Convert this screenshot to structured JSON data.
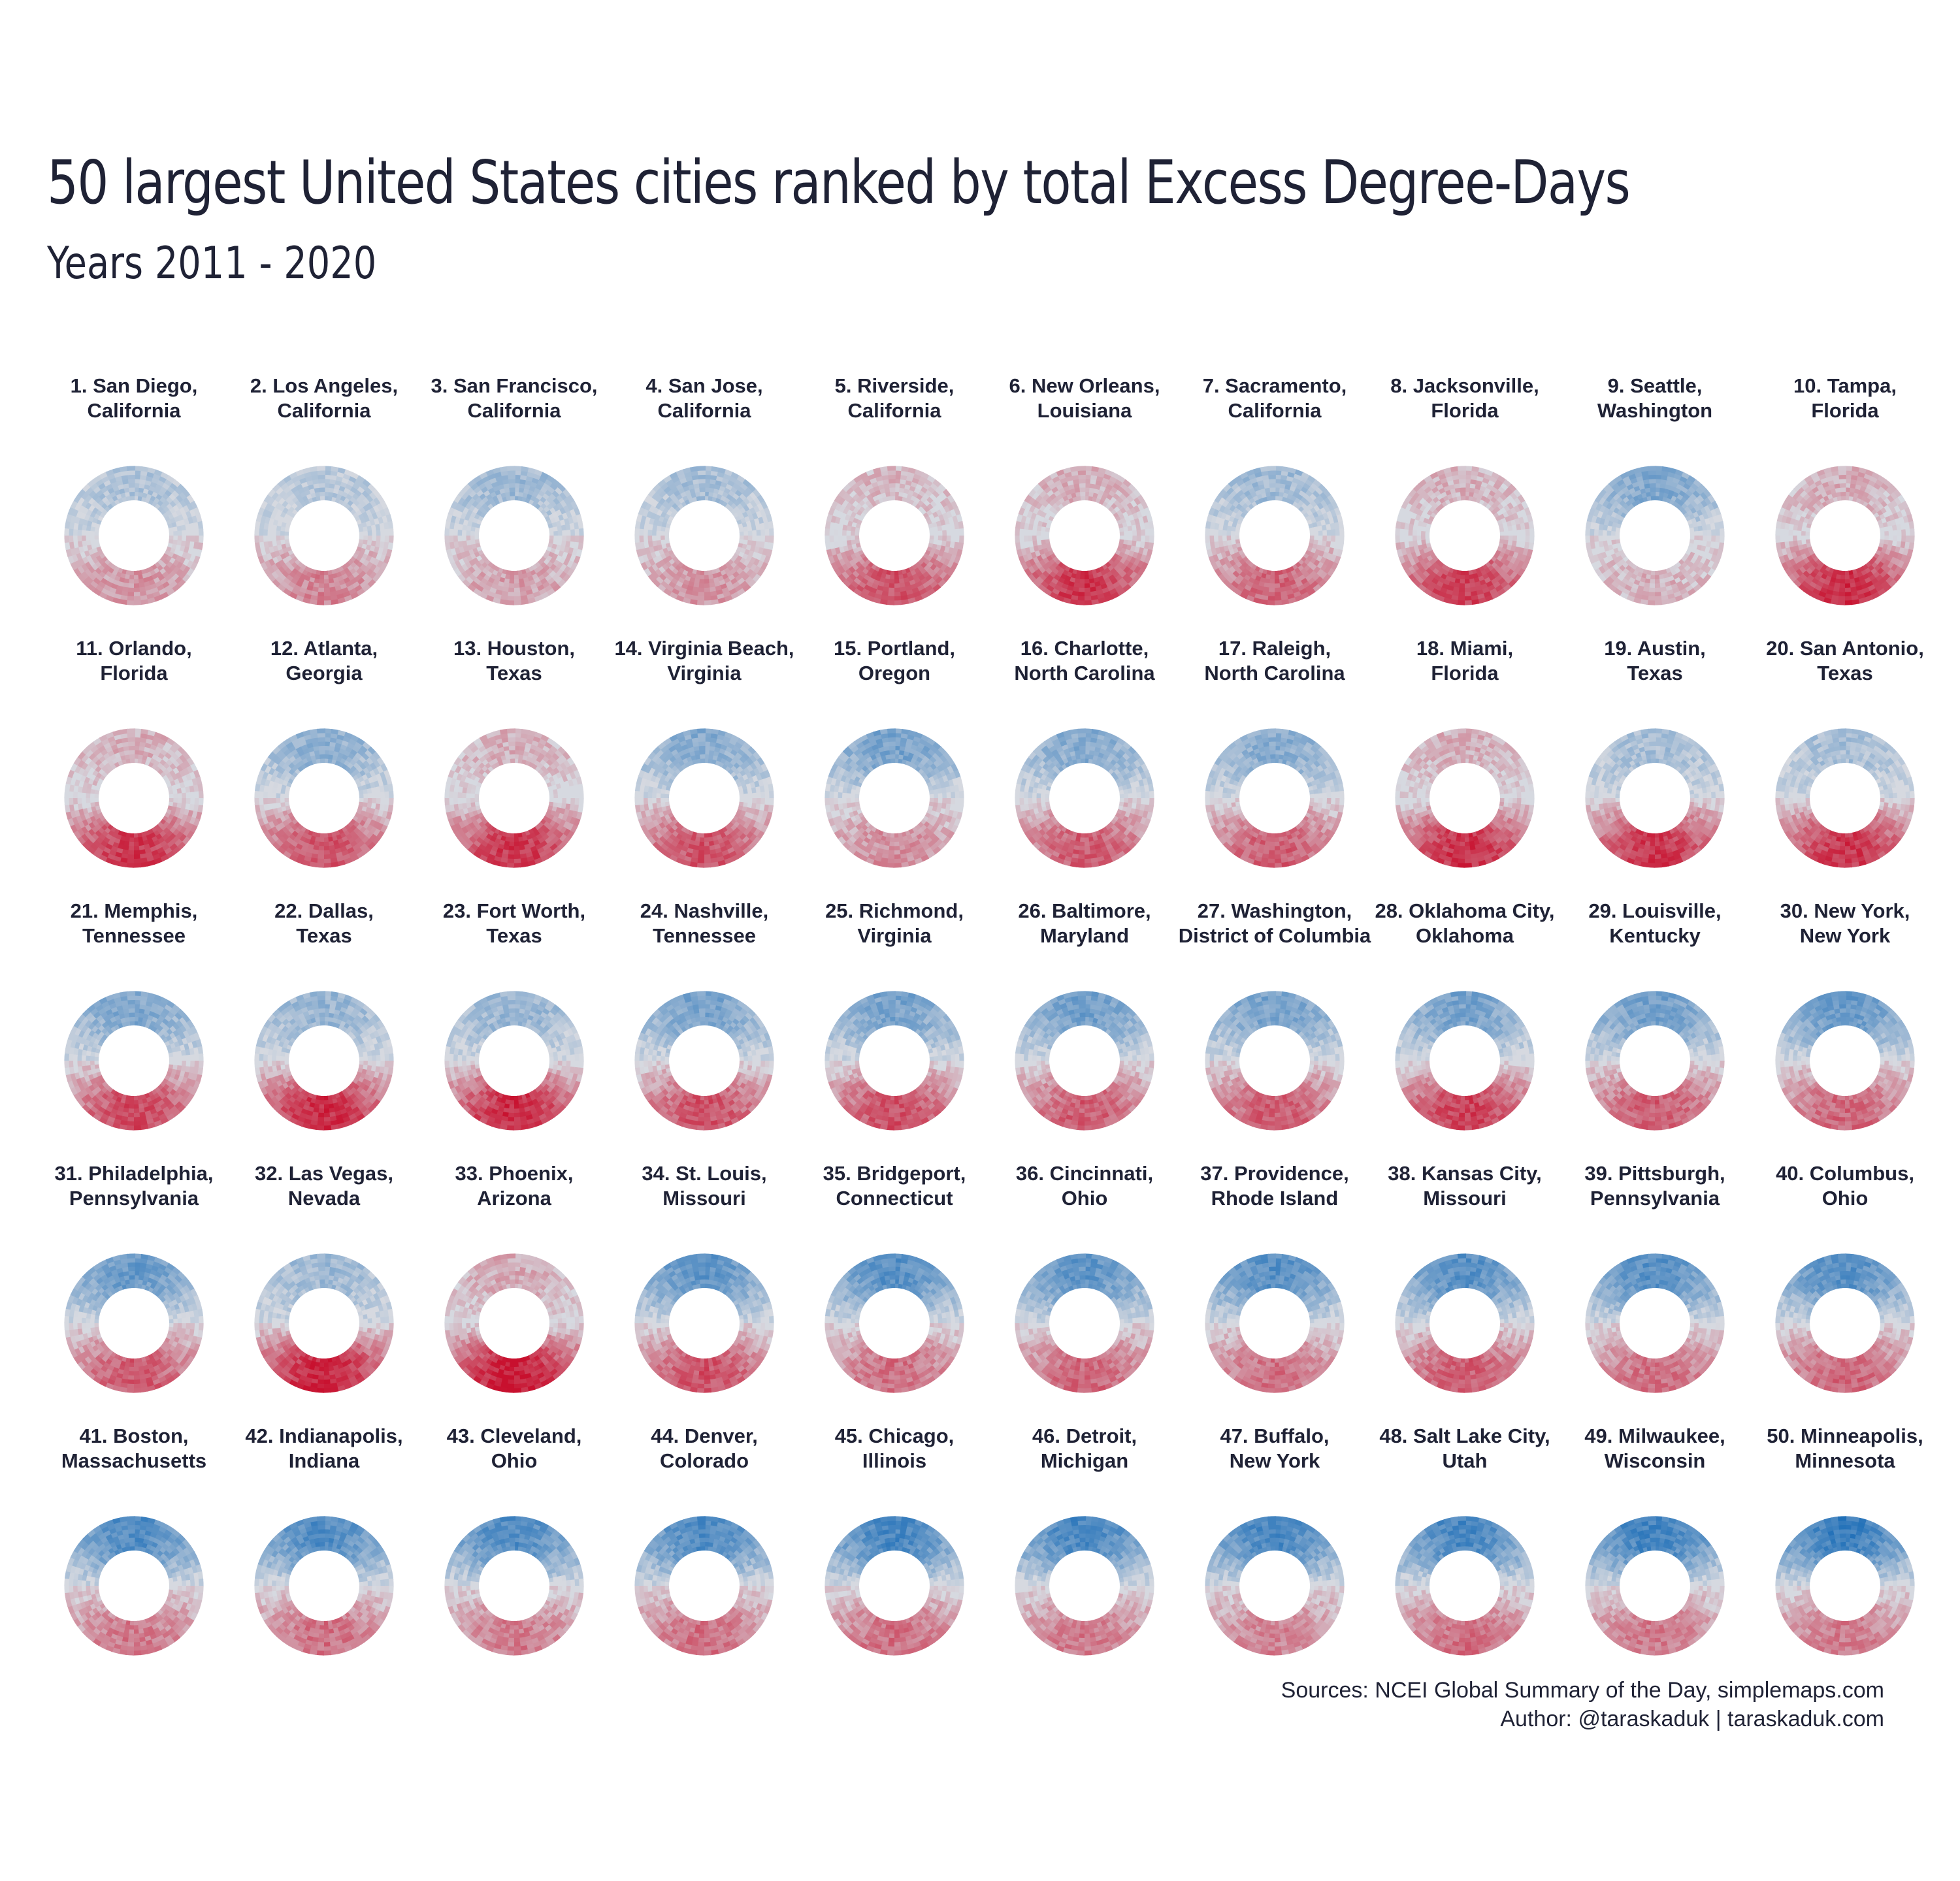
{
  "title": "50 largest United States cities ranked by total Excess Degree-Days",
  "subtitle": "Years 2011 - 2020",
  "footer": {
    "sources": "Sources: NCEI Global Summary of the Day, simplemaps.com",
    "author": "Author: @taraskaduk | taraskaduk.com"
  },
  "colors": {
    "hot": "#c8102e",
    "cold": "#1f6fb8",
    "neutral": "#d6d9e0",
    "text": "#1f2235"
  },
  "chart_data": {
    "type": "donut-grid",
    "title": "50 largest United States cities ranked by total Excess Degree-Days",
    "subtitle": "Years 2011 - 2020",
    "cities": [
      {
        "rank": "1. San Diego,",
        "state": "California",
        "hot": 0.35,
        "cold": 0.25
      },
      {
        "rank": "2. Los Angeles,",
        "state": "California",
        "hot": 0.45,
        "cold": 0.2
      },
      {
        "rank": "3. San Francisco,",
        "state": "California",
        "hot": 0.3,
        "cold": 0.35
      },
      {
        "rank": "4. San Jose,",
        "state": "California",
        "hot": 0.35,
        "cold": 0.3
      },
      {
        "rank": "5. Riverside,",
        "state": "California",
        "hot": 0.7,
        "cold": 0.15
      },
      {
        "rank": "6. New Orleans,",
        "state": "Louisiana",
        "hot": 0.85,
        "cold": 0.1
      },
      {
        "rank": "7. Sacramento,",
        "state": "California",
        "hot": 0.6,
        "cold": 0.35
      },
      {
        "rank": "8. Jacksonville,",
        "state": "Florida",
        "hot": 0.8,
        "cold": 0.15
      },
      {
        "rank": "9. Seattle,",
        "state": "Washington",
        "hot": 0.2,
        "cold": 0.55
      },
      {
        "rank": "10. Tampa,",
        "state": "Florida",
        "hot": 0.9,
        "cold": 0.05
      },
      {
        "rank": "11. Orlando,",
        "state": "Florida",
        "hot": 0.85,
        "cold": 0.08
      },
      {
        "rank": "12. Atlanta,",
        "state": "Georgia",
        "hot": 0.7,
        "cold": 0.45
      },
      {
        "rank": "13. Houston,",
        "state": "Texas",
        "hot": 0.85,
        "cold": 0.2
      },
      {
        "rank": "14. Virginia Beach,",
        "state": "Virginia",
        "hot": 0.7,
        "cold": 0.5
      },
      {
        "rank": "15. Portland,",
        "state": "Oregon",
        "hot": 0.4,
        "cold": 0.6
      },
      {
        "rank": "16. Charlotte,",
        "state": "North Carolina",
        "hot": 0.65,
        "cold": 0.5
      },
      {
        "rank": "17. Raleigh,",
        "state": "North Carolina",
        "hot": 0.65,
        "cold": 0.5
      },
      {
        "rank": "18. Miami,",
        "state": "Florida",
        "hot": 0.88,
        "cold": 0.02
      },
      {
        "rank": "19. Austin,",
        "state": "Texas",
        "hot": 0.85,
        "cold": 0.3
      },
      {
        "rank": "20. San Antonio,",
        "state": "Texas",
        "hot": 0.85,
        "cold": 0.3
      },
      {
        "rank": "21. Memphis,",
        "state": "Tennessee",
        "hot": 0.75,
        "cold": 0.55
      },
      {
        "rank": "22. Dallas,",
        "state": "Texas",
        "hot": 0.9,
        "cold": 0.4
      },
      {
        "rank": "23. Fort Worth,",
        "state": "Texas",
        "hot": 0.9,
        "cold": 0.4
      },
      {
        "rank": "24. Nashville,",
        "state": "Tennessee",
        "hot": 0.7,
        "cold": 0.6
      },
      {
        "rank": "25. Richmond,",
        "state": "Virginia",
        "hot": 0.7,
        "cold": 0.6
      },
      {
        "rank": "26. Baltimore,",
        "state": "Maryland",
        "hot": 0.65,
        "cold": 0.65
      },
      {
        "rank": "27. Washington,",
        "state": "District of Columbia",
        "hot": 0.65,
        "cold": 0.6
      },
      {
        "rank": "28. Oklahoma City,",
        "state": "Oklahoma",
        "hot": 0.8,
        "cold": 0.6
      },
      {
        "rank": "29. Louisville,",
        "state": "Kentucky",
        "hot": 0.65,
        "cold": 0.65
      },
      {
        "rank": "30. New York,",
        "state": "New York",
        "hot": 0.6,
        "cold": 0.7
      },
      {
        "rank": "31. Philadelphia,",
        "state": "Pennsylvania",
        "hot": 0.65,
        "cold": 0.7
      },
      {
        "rank": "32. Las Vegas,",
        "state": "Nevada",
        "hot": 0.95,
        "cold": 0.35
      },
      {
        "rank": "33. Phoenix,",
        "state": "Arizona",
        "hot": 1.0,
        "cold": 0.2
      },
      {
        "rank": "34. St. Louis,",
        "state": "Missouri",
        "hot": 0.7,
        "cold": 0.75
      },
      {
        "rank": "35. Bridgeport,",
        "state": "Connecticut",
        "hot": 0.55,
        "cold": 0.8
      },
      {
        "rank": "36. Cincinnati,",
        "state": "Ohio",
        "hot": 0.6,
        "cold": 0.75
      },
      {
        "rank": "37. Providence,",
        "state": "Rhode Island",
        "hot": 0.55,
        "cold": 0.8
      },
      {
        "rank": "38. Kansas City,",
        "state": "Missouri",
        "hot": 0.65,
        "cold": 0.8
      },
      {
        "rank": "39. Pittsburgh,",
        "state": "Pennsylvania",
        "hot": 0.55,
        "cold": 0.8
      },
      {
        "rank": "40. Columbus,",
        "state": "Ohio",
        "hot": 0.6,
        "cold": 0.8
      },
      {
        "rank": "41. Boston,",
        "state": "Massachusetts",
        "hot": 0.5,
        "cold": 0.85
      },
      {
        "rank": "42. Indianapolis,",
        "state": "Indiana",
        "hot": 0.55,
        "cold": 0.85
      },
      {
        "rank": "43. Cleveland,",
        "state": "Ohio",
        "hot": 0.5,
        "cold": 0.85
      },
      {
        "rank": "44. Denver,",
        "state": "Colorado",
        "hot": 0.55,
        "cold": 0.85
      },
      {
        "rank": "45. Chicago,",
        "state": "Illinois",
        "hot": 0.55,
        "cold": 0.9
      },
      {
        "rank": "46. Detroit,",
        "state": "Michigan",
        "hot": 0.5,
        "cold": 0.9
      },
      {
        "rank": "47. Buffalo,",
        "state": "New York",
        "hot": 0.45,
        "cold": 0.9
      },
      {
        "rank": "48. Salt Lake City,",
        "state": "Utah",
        "hot": 0.55,
        "cold": 0.9
      },
      {
        "rank": "49. Milwaukee,",
        "state": "Wisconsin",
        "hot": 0.5,
        "cold": 0.95
      },
      {
        "rank": "50. Minneapolis,",
        "state": "Minnesota",
        "hot": 0.5,
        "cold": 1.0
      }
    ]
  }
}
